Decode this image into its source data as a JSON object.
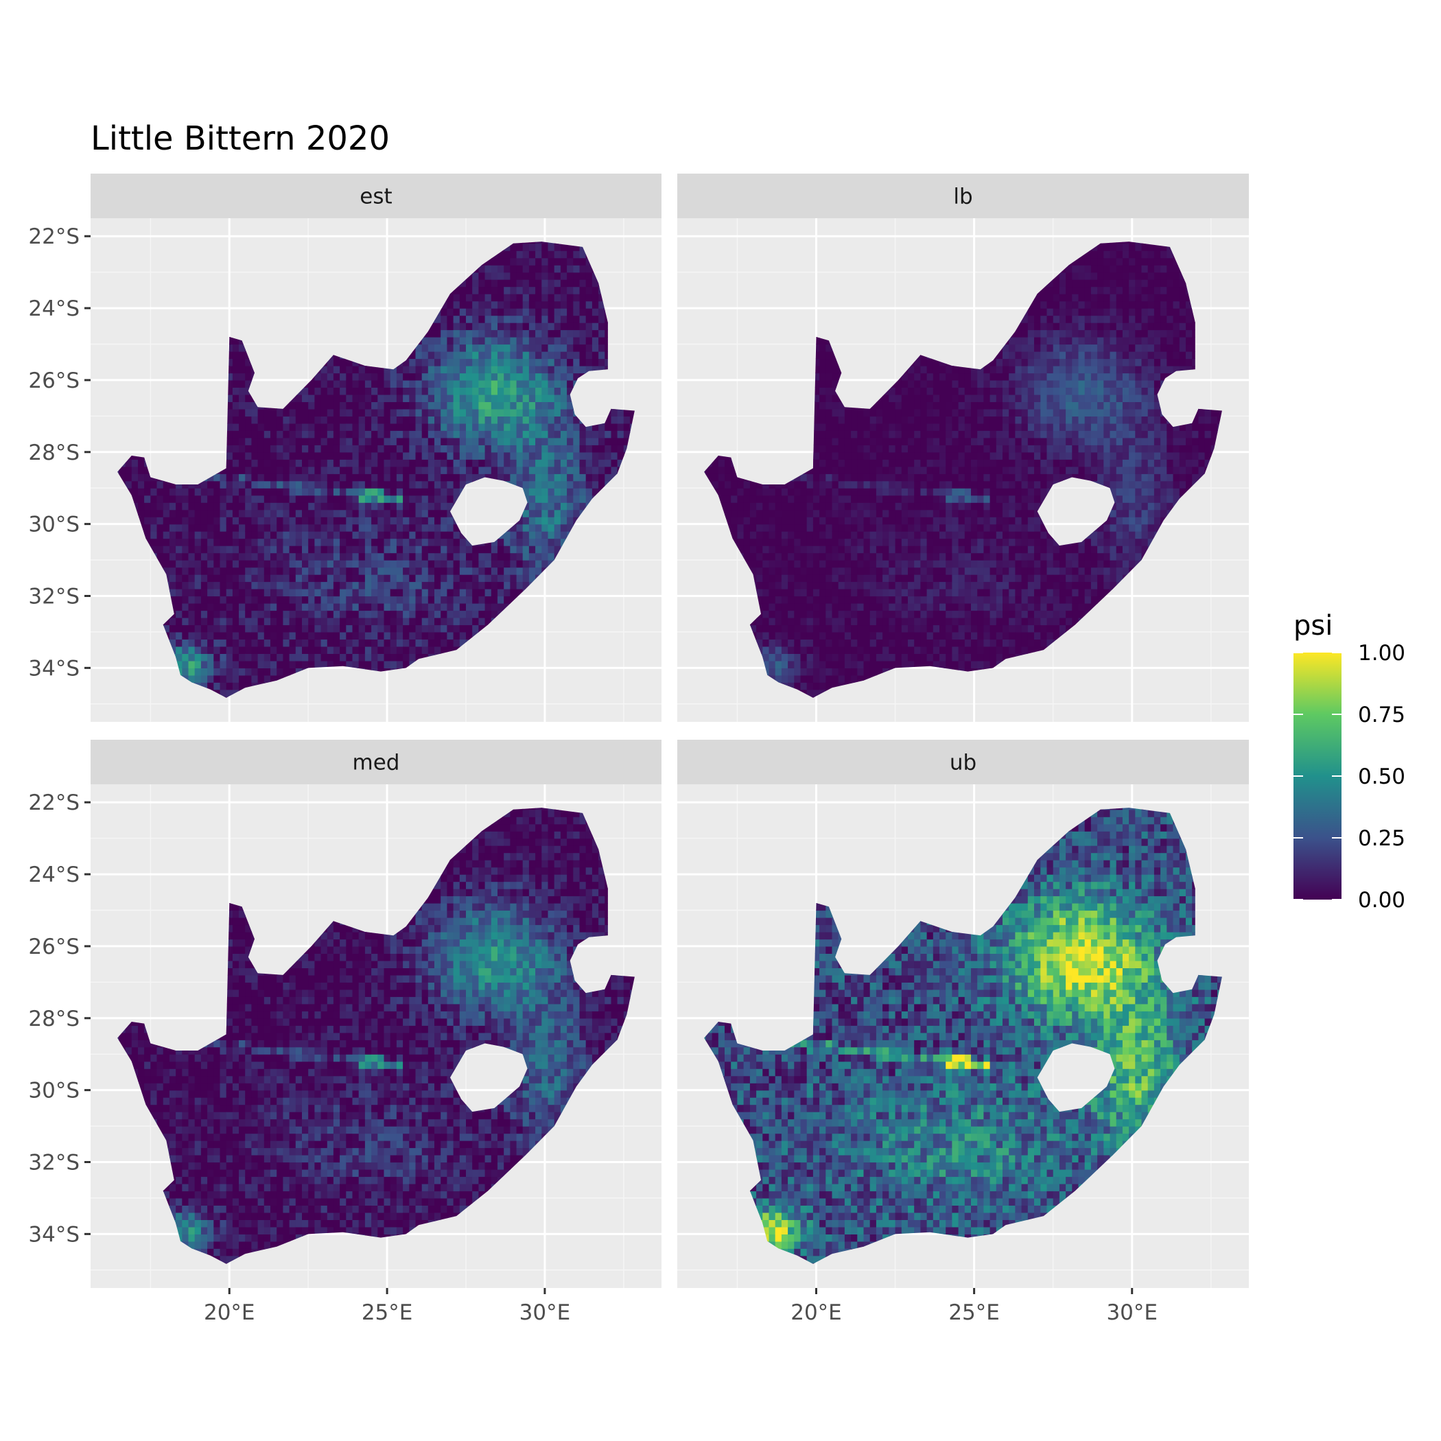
{
  "chart_data": {
    "type": "heatmap",
    "title": "Little Bittern 2020",
    "facet_layout": "2x2",
    "facets": [
      {
        "label": "est"
      },
      {
        "label": "lb"
      },
      {
        "label": "med"
      },
      {
        "label": "ub"
      }
    ],
    "x_ticks": [
      "20°E",
      "25°E",
      "30°E"
    ],
    "x_tick_values": [
      20,
      25,
      30
    ],
    "y_ticks": [
      "22°S",
      "24°S",
      "26°S",
      "28°S",
      "30°S",
      "32°S",
      "34°S"
    ],
    "y_tick_values": [
      -22,
      -24,
      -26,
      -28,
      -30,
      -32,
      -34
    ],
    "xlim": [
      15.6,
      33.7
    ],
    "ylim": [
      -35.5,
      -21.5
    ],
    "grid": true,
    "legend": {
      "title": "psi",
      "position": "right",
      "ticks": [
        "1.00",
        "0.75",
        "0.50",
        "0.25",
        "0.00"
      ],
      "tick_values": [
        1.0,
        0.75,
        0.5,
        0.25,
        0.0
      ],
      "colorscale": [
        "#440154",
        "#3b528b",
        "#21918c",
        "#5ec962",
        "#fde725"
      ]
    }
  }
}
